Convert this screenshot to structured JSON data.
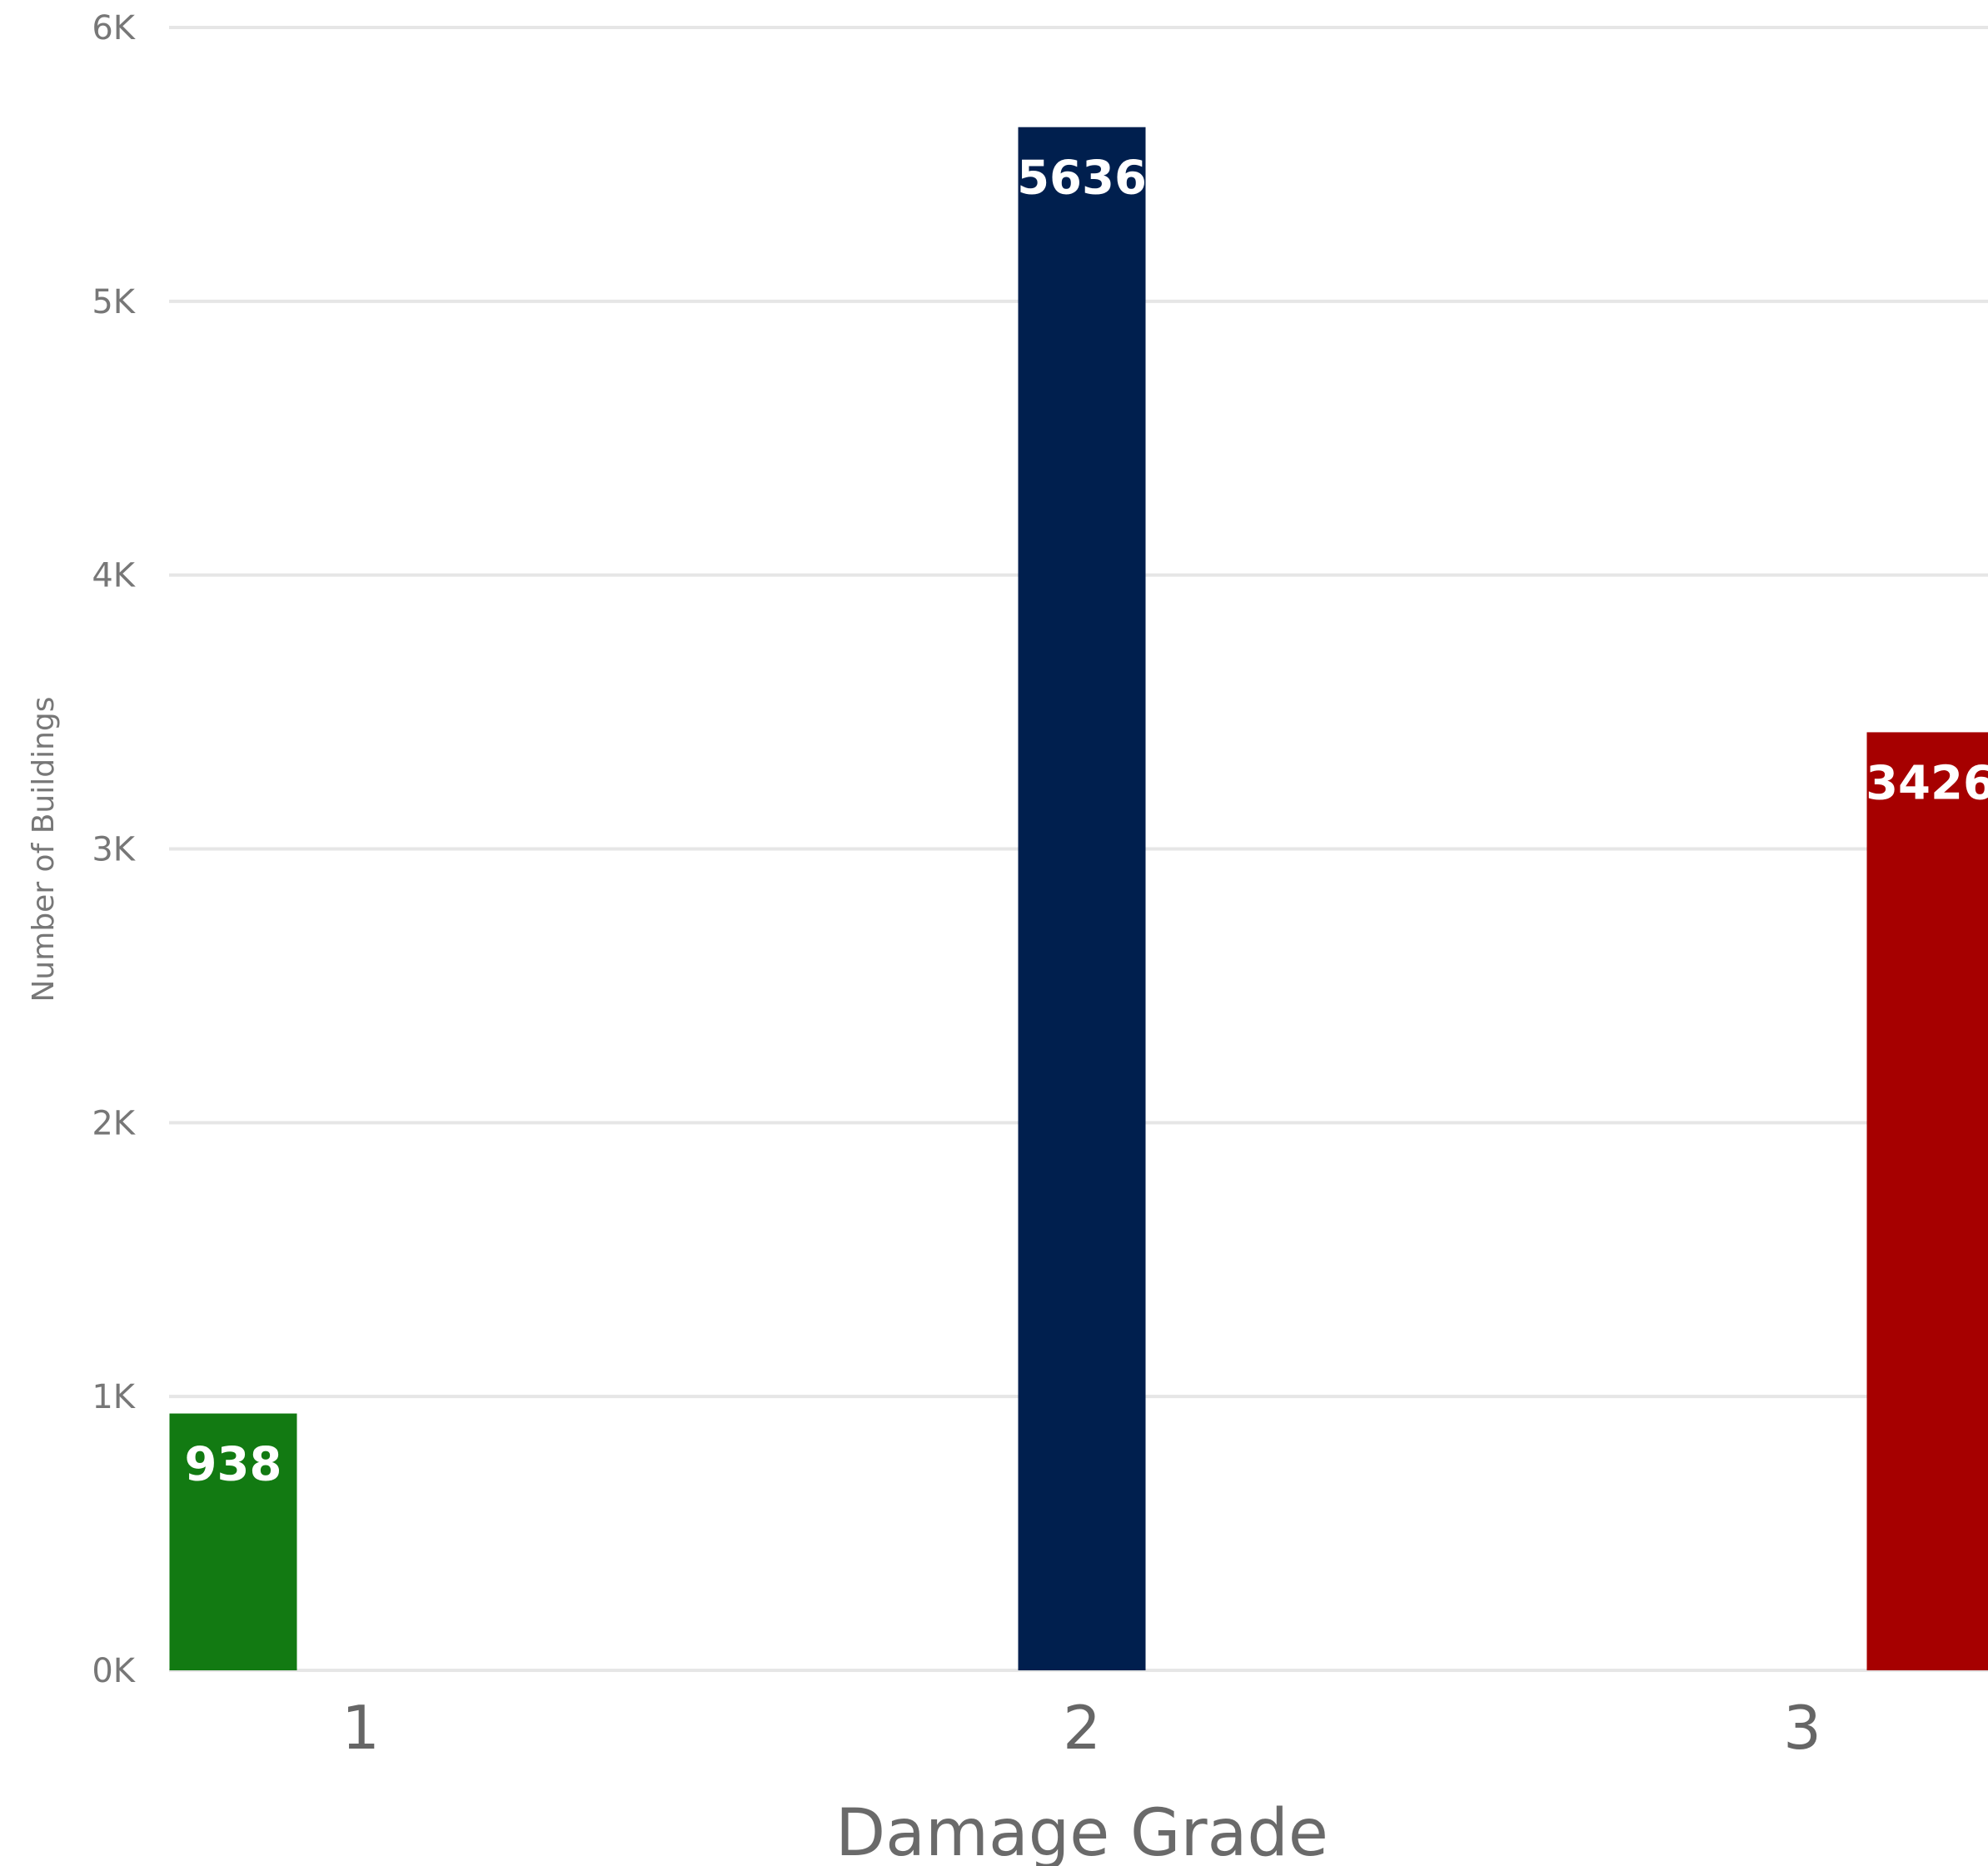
{
  "chart_data": {
    "type": "bar",
    "categories": [
      "1",
      "2",
      "3"
    ],
    "values": [
      938,
      5636,
      3426
    ],
    "data_labels": [
      "938",
      "5636",
      "3426"
    ],
    "colors": [
      "#127a12",
      "#001f4e",
      "#a60000"
    ],
    "title": "",
    "xlabel": "Damage Grade",
    "ylabel": "Number of Buildings",
    "ylim": [
      0,
      6000
    ],
    "yticks": [
      0,
      1000,
      2000,
      3000,
      4000,
      5000,
      6000
    ],
    "ytick_labels": [
      "0K",
      "1K",
      "2K",
      "3K",
      "4K",
      "5K",
      "6K"
    ],
    "grid": true,
    "gridline_color": "#e6e6e6",
    "label_color": "#ffffff",
    "legend": "none"
  }
}
